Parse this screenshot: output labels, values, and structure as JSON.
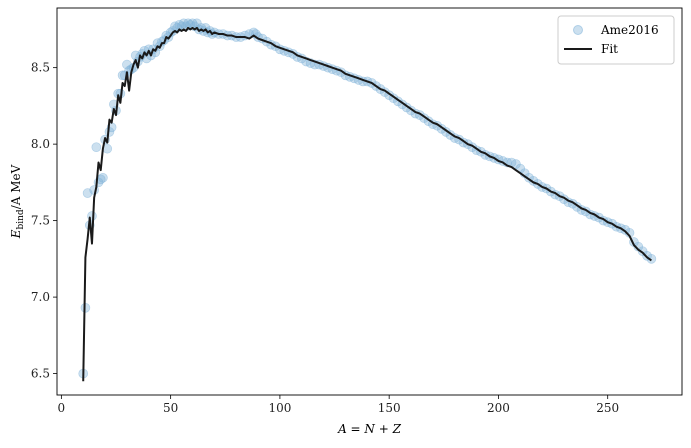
{
  "chart_data": {
    "type": "scatter",
    "xlabel_main": "A = N + Z",
    "ylabel_main": "E",
    "ylabel_sub": "bind",
    "ylabel_rest": "/A MeV",
    "xlim": [
      -2,
      284
    ],
    "ylim": [
      6.36,
      8.89
    ],
    "xticks": [
      0,
      50,
      100,
      150,
      200,
      250
    ],
    "yticks": [
      6.5,
      7.0,
      7.5,
      8.0,
      8.5
    ],
    "ytick_labels": [
      "6.5",
      "7.0",
      "7.5",
      "8.0",
      "8.5"
    ],
    "xtick_labels": [
      "0",
      "50",
      "100",
      "150",
      "200",
      "250"
    ],
    "legend_position": "top-right",
    "series": [
      {
        "name": "Ame2016",
        "kind": "scatter",
        "color": "#7fb2d8",
        "points": [
          [
            10,
            6.5
          ],
          [
            11,
            6.93
          ],
          [
            12,
            7.68
          ],
          [
            13,
            7.47
          ],
          [
            14,
            7.53
          ],
          [
            15,
            7.7
          ],
          [
            16,
            7.98
          ],
          [
            17,
            7.75
          ],
          [
            18,
            7.77
          ],
          [
            19,
            7.78
          ],
          [
            20,
            8.03
          ],
          [
            21,
            7.97
          ],
          [
            22,
            8.08
          ],
          [
            23,
            8.11
          ],
          [
            24,
            8.26
          ],
          [
            25,
            8.22
          ],
          [
            26,
            8.33
          ],
          [
            27,
            8.33
          ],
          [
            28,
            8.45
          ],
          [
            29,
            8.45
          ],
          [
            30,
            8.52
          ],
          [
            31,
            8.48
          ],
          [
            32,
            8.49
          ],
          [
            33,
            8.5
          ],
          [
            34,
            8.58
          ],
          [
            35,
            8.54
          ],
          [
            36,
            8.57
          ],
          [
            37,
            8.59
          ],
          [
            38,
            8.61
          ],
          [
            39,
            8.56
          ],
          [
            40,
            8.62
          ],
          [
            41,
            8.58
          ],
          [
            42,
            8.62
          ],
          [
            43,
            8.6
          ],
          [
            44,
            8.66
          ],
          [
            45,
            8.64
          ],
          [
            46,
            8.67
          ],
          [
            47,
            8.68
          ],
          [
            48,
            8.71
          ],
          [
            49,
            8.7
          ],
          [
            50,
            8.73
          ],
          [
            51,
            8.74
          ],
          [
            52,
            8.77
          ],
          [
            53,
            8.76
          ],
          [
            54,
            8.78
          ],
          [
            55,
            8.77
          ],
          [
            56,
            8.79
          ],
          [
            57,
            8.77
          ],
          [
            58,
            8.79
          ],
          [
            59,
            8.78
          ],
          [
            60,
            8.79
          ],
          [
            61,
            8.77
          ],
          [
            62,
            8.79
          ],
          [
            63,
            8.75
          ],
          [
            64,
            8.76
          ],
          [
            65,
            8.74
          ],
          [
            66,
            8.76
          ],
          [
            67,
            8.73
          ],
          [
            68,
            8.74
          ],
          [
            69,
            8.72
          ],
          [
            70,
            8.73
          ],
          [
            72,
            8.72
          ],
          [
            74,
            8.72
          ],
          [
            76,
            8.71
          ],
          [
            78,
            8.71
          ],
          [
            80,
            8.7
          ],
          [
            82,
            8.7
          ],
          [
            84,
            8.71
          ],
          [
            86,
            8.72
          ],
          [
            88,
            8.73
          ],
          [
            89,
            8.72
          ],
          [
            90,
            8.7
          ],
          [
            92,
            8.69
          ],
          [
            94,
            8.67
          ],
          [
            96,
            8.65
          ],
          [
            98,
            8.64
          ],
          [
            100,
            8.62
          ],
          [
            102,
            8.61
          ],
          [
            104,
            8.6
          ],
          [
            106,
            8.59
          ],
          [
            108,
            8.57
          ],
          [
            110,
            8.56
          ],
          [
            112,
            8.54
          ],
          [
            114,
            8.53
          ],
          [
            116,
            8.52
          ],
          [
            118,
            8.52
          ],
          [
            120,
            8.51
          ],
          [
            122,
            8.5
          ],
          [
            124,
            8.49
          ],
          [
            126,
            8.48
          ],
          [
            128,
            8.47
          ],
          [
            130,
            8.45
          ],
          [
            132,
            8.44
          ],
          [
            134,
            8.43
          ],
          [
            136,
            8.42
          ],
          [
            138,
            8.41
          ],
          [
            140,
            8.41
          ],
          [
            142,
            8.4
          ],
          [
            144,
            8.38
          ],
          [
            146,
            8.36
          ],
          [
            148,
            8.34
          ],
          [
            150,
            8.32
          ],
          [
            152,
            8.3
          ],
          [
            154,
            8.28
          ],
          [
            156,
            8.26
          ],
          [
            158,
            8.24
          ],
          [
            160,
            8.22
          ],
          [
            162,
            8.2
          ],
          [
            164,
            8.19
          ],
          [
            166,
            8.17
          ],
          [
            168,
            8.15
          ],
          [
            170,
            8.13
          ],
          [
            172,
            8.12
          ],
          [
            174,
            8.1
          ],
          [
            176,
            8.08
          ],
          [
            178,
            8.06
          ],
          [
            180,
            8.04
          ],
          [
            182,
            8.03
          ],
          [
            184,
            8.01
          ],
          [
            186,
            8.0
          ],
          [
            188,
            7.98
          ],
          [
            190,
            7.96
          ],
          [
            192,
            7.95
          ],
          [
            194,
            7.93
          ],
          [
            196,
            7.92
          ],
          [
            198,
            7.91
          ],
          [
            200,
            7.9
          ],
          [
            202,
            7.89
          ],
          [
            204,
            7.88
          ],
          [
            206,
            7.88
          ],
          [
            208,
            7.87
          ],
          [
            210,
            7.84
          ],
          [
            212,
            7.81
          ],
          [
            214,
            7.78
          ],
          [
            216,
            7.76
          ],
          [
            218,
            7.74
          ],
          [
            220,
            7.72
          ],
          [
            222,
            7.71
          ],
          [
            224,
            7.69
          ],
          [
            226,
            7.67
          ],
          [
            228,
            7.66
          ],
          [
            230,
            7.64
          ],
          [
            232,
            7.62
          ],
          [
            234,
            7.61
          ],
          [
            236,
            7.59
          ],
          [
            238,
            7.57
          ],
          [
            240,
            7.56
          ],
          [
            242,
            7.54
          ],
          [
            244,
            7.53
          ],
          [
            246,
            7.52
          ],
          [
            248,
            7.5
          ],
          [
            250,
            7.49
          ],
          [
            252,
            7.48
          ],
          [
            254,
            7.46
          ],
          [
            256,
            7.45
          ],
          [
            258,
            7.44
          ],
          [
            260,
            7.42
          ],
          [
            262,
            7.36
          ],
          [
            264,
            7.33
          ],
          [
            266,
            7.3
          ],
          [
            268,
            7.27
          ],
          [
            270,
            7.25
          ]
        ]
      },
      {
        "name": "Fit",
        "kind": "line",
        "color": "#1a1a1a",
        "points": [
          [
            10,
            6.45
          ],
          [
            11,
            7.26
          ],
          [
            12,
            7.38
          ],
          [
            13,
            7.52
          ],
          [
            14,
            7.35
          ],
          [
            15,
            7.65
          ],
          [
            16,
            7.72
          ],
          [
            17,
            7.88
          ],
          [
            18,
            7.83
          ],
          [
            19,
            7.97
          ],
          [
            20,
            8.04
          ],
          [
            21,
            8.01
          ],
          [
            22,
            8.16
          ],
          [
            23,
            8.14
          ],
          [
            24,
            8.23
          ],
          [
            25,
            8.19
          ],
          [
            26,
            8.32
          ],
          [
            27,
            8.27
          ],
          [
            28,
            8.4
          ],
          [
            29,
            8.38
          ],
          [
            30,
            8.47
          ],
          [
            31,
            8.35
          ],
          [
            32,
            8.47
          ],
          [
            33,
            8.52
          ],
          [
            34,
            8.55
          ],
          [
            35,
            8.5
          ],
          [
            36,
            8.58
          ],
          [
            37,
            8.56
          ],
          [
            38,
            8.6
          ],
          [
            39,
            8.58
          ],
          [
            40,
            8.61
          ],
          [
            41,
            8.58
          ],
          [
            42,
            8.62
          ],
          [
            43,
            8.61
          ],
          [
            44,
            8.64
          ],
          [
            45,
            8.63
          ],
          [
            46,
            8.66
          ],
          [
            47,
            8.66
          ],
          [
            48,
            8.7
          ],
          [
            49,
            8.69
          ],
          [
            50,
            8.71
          ],
          [
            51,
            8.73
          ],
          [
            52,
            8.74
          ],
          [
            53,
            8.73
          ],
          [
            54,
            8.75
          ],
          [
            55,
            8.74
          ],
          [
            56,
            8.75
          ],
          [
            57,
            8.74
          ],
          [
            58,
            8.76
          ],
          [
            59,
            8.75
          ],
          [
            60,
            8.76
          ],
          [
            61,
            8.75
          ],
          [
            62,
            8.76
          ],
          [
            63,
            8.74
          ],
          [
            64,
            8.75
          ],
          [
            65,
            8.74
          ],
          [
            66,
            8.75
          ],
          [
            67,
            8.73
          ],
          [
            68,
            8.74
          ],
          [
            69,
            8.72
          ],
          [
            70,
            8.73
          ],
          [
            72,
            8.72
          ],
          [
            74,
            8.72
          ],
          [
            76,
            8.71
          ],
          [
            78,
            8.71
          ],
          [
            80,
            8.7
          ],
          [
            82,
            8.7
          ],
          [
            84,
            8.7
          ],
          [
            86,
            8.69
          ],
          [
            88,
            8.71
          ],
          [
            89,
            8.7
          ],
          [
            90,
            8.69
          ],
          [
            92,
            8.68
          ],
          [
            94,
            8.67
          ],
          [
            96,
            8.66
          ],
          [
            98,
            8.64
          ],
          [
            100,
            8.63
          ],
          [
            102,
            8.62
          ],
          [
            104,
            8.61
          ],
          [
            106,
            8.6
          ],
          [
            108,
            8.58
          ],
          [
            110,
            8.57
          ],
          [
            112,
            8.56
          ],
          [
            114,
            8.55
          ],
          [
            116,
            8.54
          ],
          [
            118,
            8.53
          ],
          [
            120,
            8.52
          ],
          [
            122,
            8.51
          ],
          [
            124,
            8.5
          ],
          [
            126,
            8.49
          ],
          [
            128,
            8.48
          ],
          [
            130,
            8.46
          ],
          [
            132,
            8.45
          ],
          [
            134,
            8.44
          ],
          [
            136,
            8.43
          ],
          [
            138,
            8.42
          ],
          [
            140,
            8.41
          ],
          [
            142,
            8.4
          ],
          [
            144,
            8.38
          ],
          [
            146,
            8.36
          ],
          [
            148,
            8.35
          ],
          [
            150,
            8.33
          ],
          [
            152,
            8.31
          ],
          [
            154,
            8.29
          ],
          [
            156,
            8.27
          ],
          [
            158,
            8.25
          ],
          [
            160,
            8.23
          ],
          [
            162,
            8.21
          ],
          [
            164,
            8.2
          ],
          [
            166,
            8.18
          ],
          [
            168,
            8.16
          ],
          [
            170,
            8.14
          ],
          [
            172,
            8.13
          ],
          [
            174,
            8.11
          ],
          [
            176,
            8.09
          ],
          [
            178,
            8.07
          ],
          [
            180,
            8.05
          ],
          [
            182,
            8.04
          ],
          [
            184,
            8.02
          ],
          [
            186,
            8.0
          ],
          [
            188,
            7.99
          ],
          [
            190,
            7.97
          ],
          [
            192,
            7.95
          ],
          [
            194,
            7.94
          ],
          [
            196,
            7.92
          ],
          [
            198,
            7.91
          ],
          [
            200,
            7.89
          ],
          [
            202,
            7.88
          ],
          [
            204,
            7.86
          ],
          [
            206,
            7.85
          ],
          [
            208,
            7.83
          ],
          [
            210,
            7.81
          ],
          [
            212,
            7.79
          ],
          [
            214,
            7.77
          ],
          [
            216,
            7.75
          ],
          [
            218,
            7.74
          ],
          [
            220,
            7.72
          ],
          [
            222,
            7.71
          ],
          [
            224,
            7.69
          ],
          [
            226,
            7.68
          ],
          [
            228,
            7.66
          ],
          [
            230,
            7.65
          ],
          [
            232,
            7.63
          ],
          [
            234,
            7.62
          ],
          [
            236,
            7.6
          ],
          [
            238,
            7.58
          ],
          [
            240,
            7.57
          ],
          [
            242,
            7.55
          ],
          [
            244,
            7.54
          ],
          [
            246,
            7.52
          ],
          [
            248,
            7.51
          ],
          [
            250,
            7.49
          ],
          [
            252,
            7.48
          ],
          [
            254,
            7.46
          ],
          [
            256,
            7.45
          ],
          [
            258,
            7.43
          ],
          [
            260,
            7.4
          ],
          [
            262,
            7.34
          ],
          [
            264,
            7.31
          ],
          [
            266,
            7.29
          ],
          [
            268,
            7.26
          ],
          [
            270,
            7.24
          ]
        ]
      }
    ]
  }
}
